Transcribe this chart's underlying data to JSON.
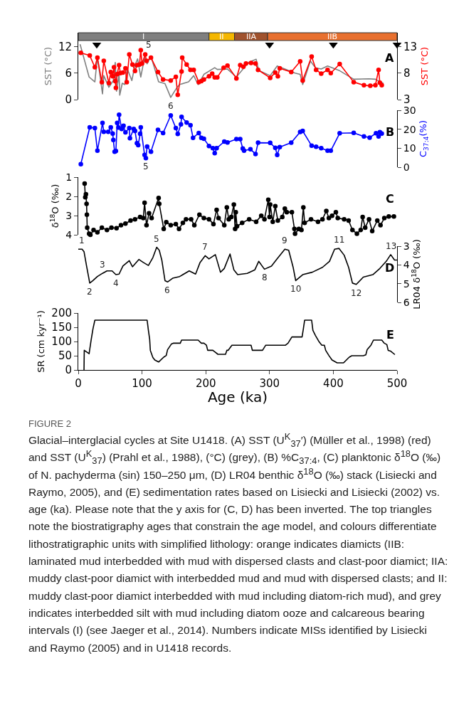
{
  "chart_data": [
    {
      "type": "line",
      "ylabel": "SST (°C)",
      "y2label": "SST (°C)",
      "xlim": [
        0,
        500
      ],
      "xticks": [
        0,
        100,
        200,
        300,
        400,
        500
      ],
      "ylim": [
        0,
        15.1
      ],
      "yticks": [
        0,
        6,
        12
      ],
      "y2lim": [
        3,
        15.6
      ],
      "y2ticks": [
        3,
        8,
        13
      ],
      "tick_labels": "y",
      "marker": "circle",
      "bands": [
        {
          "axis": "x",
          "from": 0,
          "to": 205,
          "label": "I",
          "color": "#7f7f7f"
        },
        {
          "axis": "x",
          "from": 205,
          "to": 245,
          "label": "II",
          "color": "#f5b700"
        },
        {
          "axis": "x",
          "from": 245,
          "to": 297,
          "label": "IIA",
          "color": "#a0522d"
        },
        {
          "axis": "x",
          "from": 297,
          "to": 500,
          "label": "IIB",
          "color": "#e8702f"
        }
      ],
      "series": [
        {
          "color": "#808080",
          "marker": "none",
          "x": [
            3,
            17,
            26,
            30,
            38,
            40,
            48,
            55,
            58,
            60,
            64,
            65,
            69,
            73,
            77,
            84,
            89,
            93,
            98,
            104,
            108,
            114,
            126,
            136,
            145,
            155,
            159,
            173,
            181,
            188,
            197,
            214,
            218,
            234,
            248,
            267,
            279,
            283,
            301,
            312,
            324,
            340,
            348,
            352,
            364,
            372,
            381,
            391,
            409,
            432,
            456,
            466,
            474,
            478
          ],
          "values": [
            12.4,
            5.1,
            4.0,
            9.6,
            1.3,
            5.4,
            2.8,
            4.3,
            8.4,
            1.9,
            5.7,
            1.0,
            3.7,
            3.4,
            6.9,
            4.3,
            7.8,
            9.2,
            5.1,
            9.5,
            8.1,
            9.8,
            4.0,
            3.6,
            0.5,
            2.8,
            3.4,
            4.0,
            5.4,
            3.4,
            5.7,
            7.2,
            6.8,
            6.9,
            5.1,
            8.4,
            9.1,
            6.6,
            5.4,
            7.6,
            6.9,
            6.0,
            5.7,
            3.4,
            8.7,
            7.2,
            6.9,
            7.6,
            6.6,
            4.6,
            4.7,
            4.6,
            4.0,
            3.7
          ]
        },
        {
          "color": "#ff0000",
          "axis": "y2",
          "x": [
            4,
            18,
            26,
            30,
            37,
            40,
            48,
            51,
            54,
            56,
            58,
            59,
            61,
            64,
            66,
            70,
            74,
            76,
            80,
            85,
            89,
            92,
            96,
            98,
            100,
            105,
            107,
            114,
            125,
            133,
            145,
            153,
            156,
            162,
            163,
            170,
            176,
            181,
            189,
            193,
            197,
            205,
            210,
            214,
            218,
            228,
            234,
            248,
            254,
            259,
            263,
            271,
            278,
            282,
            301,
            309,
            313,
            316,
            334,
            348,
            352,
            366,
            373,
            381,
            391,
            396,
            410,
            432,
            448,
            458,
            466,
            471,
            473,
            476
          ],
          "values": [
            11.8,
            11.3,
            9.1,
            10.9,
            6.3,
            10.3,
            6.1,
            8.2,
            7.4,
            9.1,
            6.5,
            5.2,
            7.8,
            9.5,
            8.0,
            8.1,
            8.9,
            6.3,
            11.5,
            9.6,
            8.4,
            9.5,
            9.6,
            12.3,
            9.8,
            11.5,
            10.3,
            10.9,
            8.2,
            6.8,
            6.6,
            7.3,
            3.9,
            8.3,
            10.9,
            9.6,
            8.6,
            8.6,
            6.3,
            6.5,
            6.8,
            7.4,
            7.9,
            7.2,
            7.2,
            9.0,
            9.4,
            7.0,
            9.5,
            9.2,
            9.8,
            9.9,
            9.8,
            8.6,
            7.1,
            8.1,
            7.4,
            8.9,
            8.2,
            10.2,
            6.6,
            11.1,
            8.6,
            7.9,
            8.6,
            8.0,
            9.7,
            6.3,
            5.7,
            5.6,
            5.7,
            8.6,
            6.2,
            5.7
          ]
        },
        {
          "type": "scatter",
          "color": "#000000",
          "marker": "triangle",
          "x": [
            29,
            300,
            400,
            500
          ],
          "values": [
            12.4,
            12.4,
            12.4,
            12.4
          ]
        }
      ],
      "annotations": [
        "A",
        {
          "text": "5",
          "x": 110,
          "y": 10.5
        },
        {
          "text": "6",
          "x": 145,
          "y": 0.5
        }
      ]
    },
    {
      "type": "line",
      "ylabel": "C$_{37:4}$(%)",
      "xlim": [
        0,
        500
      ],
      "xticks": [
        0,
        100,
        200,
        300,
        400,
        500
      ],
      "ylim": [
        0,
        30
      ],
      "yticks": [
        0,
        10,
        20,
        30
      ],
      "tick_labels": "y",
      "marker": "circle",
      "series": [
        {
          "color": "#0000ff",
          "x": [
            4,
            18,
            26,
            30,
            38,
            40,
            47,
            51,
            54,
            55,
            57,
            59,
            61,
            63,
            64,
            68,
            71,
            74,
            80,
            81,
            87,
            89,
            92,
            94,
            97,
            98,
            104,
            106,
            108,
            114,
            125,
            133,
            145,
            153,
            156,
            161,
            162,
            170,
            176,
            180,
            189,
            193,
            197,
            205,
            211,
            214,
            217,
            229,
            234,
            248,
            254,
            258,
            260,
            270,
            278,
            282,
            301,
            309,
            312,
            316,
            334,
            348,
            352,
            366,
            373,
            381,
            391,
            396,
            410,
            432,
            448,
            457,
            467,
            471,
            473,
            476
          ],
          "values": [
            1.6,
            21.0,
            20.6,
            8.7,
            23.3,
            18.7,
            18.7,
            21.0,
            17.7,
            14.3,
            8.2,
            8.5,
            23.3,
            20.9,
            27.7,
            20.2,
            21.8,
            18.4,
            20.6,
            15.3,
            20.2,
            19.1,
            12.7,
            11.6,
            17.6,
            21.0,
            6.5,
            4.8,
            10.9,
            8.2,
            19.7,
            18.0,
            27.3,
            20.6,
            17.5,
            22.6,
            26.5,
            23.5,
            22.1,
            15.5,
            18.0,
            15.5,
            15.0,
            11.2,
            10.0,
            7.4,
            10.0,
            13.5,
            13.0,
            14.8,
            14.8,
            9.8,
            8.7,
            9.5,
            6.9,
            12.9,
            12.8,
            10.2,
            6.5,
            10.6,
            12.9,
            18.6,
            19.1,
            11.3,
            10.8,
            10.0,
            8.7,
            8.7,
            17.9,
            18.1,
            16.2,
            15.6,
            17.9,
            16.2,
            18.5,
            17.7
          ]
        }
      ],
      "annotations": [
        "B",
        {
          "text": "5",
          "x": 106,
          "y": 4.8
        }
      ]
    },
    {
      "type": "line",
      "ylabel": "δ$^{18}$O (‰)",
      "xlim": [
        0,
        500
      ],
      "xticks": [
        0,
        100,
        200,
        300,
        400,
        500
      ],
      "ylim": [
        4,
        1
      ],
      "yticks": [
        1,
        2,
        3,
        4
      ],
      "tick_labels": "y",
      "marker": "circle",
      "series": [
        {
          "color": "#000000",
          "x": [
            10,
            11,
            12,
            13,
            13.5,
            14,
            17,
            19,
            24,
            30,
            37,
            45,
            52,
            60,
            67,
            74,
            82,
            89,
            97,
            102,
            104,
            107,
            111,
            115,
            126,
            127,
            134,
            138,
            145,
            153,
            158,
            164,
            169,
            177,
            182,
            190,
            197,
            205,
            212,
            217,
            220,
            229,
            233,
            236,
            240,
            244,
            246,
            247,
            249,
            257,
            268,
            279,
            287,
            292,
            298,
            300,
            301,
            305,
            309,
            313,
            320,
            324,
            327,
            335,
            339,
            340,
            346,
            350,
            353,
            355,
            365,
            376,
            383,
            389,
            393,
            398,
            404,
            407,
            417,
            424,
            430,
            437,
            443,
            446,
            450,
            456,
            461,
            469,
            474,
            480,
            487,
            495
          ],
          "values": [
            1.33,
            2.05,
            1.89,
            2.39,
            2.95,
            3.63,
            3.94,
            4.0,
            3.75,
            3.87,
            3.63,
            3.75,
            3.63,
            3.66,
            3.5,
            3.42,
            3.26,
            3.19,
            3.07,
            3.13,
            2.33,
            3.5,
            2.88,
            3.13,
            2.08,
            2.39,
            3.69,
            3.34,
            3.5,
            3.44,
            3.69,
            3.38,
            3.19,
            3.19,
            3.5,
            2.95,
            3.13,
            3.19,
            3.44,
            2.7,
            3.13,
            3.5,
            2.57,
            3.19,
            3.07,
            2.43,
            3.69,
            2.82,
            3.56,
            3.38,
            3.19,
            3.32,
            3.01,
            3.19,
            2.18,
            3.07,
            2.43,
            3.32,
            2.51,
            3.26,
            3.07,
            2.64,
            2.82,
            2.82,
            3.69,
            3.94,
            3.69,
            3.75,
            2.57,
            3.38,
            3.19,
            3.32,
            3.19,
            2.76,
            3.13,
            3.01,
            2.82,
            3.13,
            3.19,
            3.26,
            3.75,
            3.94,
            3.75,
            3.07,
            3.63,
            3.19,
            3.81,
            3.26,
            3.5,
            3.13,
            3.05,
            3.05
          ]
        }
      ],
      "annotations": [
        "C"
      ]
    },
    {
      "type": "line",
      "ylabel": "LR04 δ$^{18}$O (‰)",
      "xlim": [
        0,
        500
      ],
      "xticks": [
        0,
        100,
        200,
        300,
        400,
        500
      ],
      "ylim": [
        6,
        3
      ],
      "yticks": [
        3,
        4,
        5,
        6
      ],
      "tick_labels": "y",
      "series": [
        {
          "color": "#000000",
          "x": [
            0,
            6,
            9,
            13,
            18,
            23,
            30,
            38,
            45,
            53,
            59,
            64,
            70,
            80,
            85,
            95,
            102,
            110,
            117,
            123,
            127,
            131,
            136,
            140,
            148,
            159,
            174,
            184,
            191,
            199,
            205,
            215,
            223,
            229,
            238,
            244,
            250,
            265,
            277,
            283,
            292,
            303,
            311,
            324,
            330,
            337,
            341,
            352,
            367,
            383,
            394,
            402,
            409,
            417,
            424,
            430,
            436,
            447,
            462,
            473,
            483,
            490,
            496,
            500
          ],
          "values": [
            3.16,
            3.16,
            3.29,
            4.06,
            4.97,
            4.84,
            4.62,
            4.45,
            4.32,
            4.32,
            4.52,
            4.49,
            4.06,
            3.77,
            4.1,
            3.71,
            3.87,
            4.03,
            3.61,
            3.06,
            3.22,
            3.74,
            4.84,
            4.91,
            4.71,
            4.62,
            4.32,
            4.49,
            3.87,
            3.51,
            3.68,
            3.45,
            4.39,
            4.19,
            3.42,
            4.26,
            4.52,
            4.45,
            4.26,
            3.81,
            4.23,
            4.06,
            3.71,
            3.16,
            3.22,
            4.13,
            4.84,
            4.52,
            4.39,
            4.13,
            3.81,
            3.16,
            3.12,
            3.48,
            4.13,
            4.97,
            5.04,
            4.65,
            4.52,
            4.19,
            3.81,
            3.45,
            3.74,
            3.74
          ]
        }
      ],
      "annotations": [
        "D",
        {
          "text": "1",
          "x": 6,
          "y": 3.16
        },
        {
          "text": "2",
          "x": 18,
          "y": 4.97
        },
        {
          "text": "3",
          "x": 38,
          "y": 4.45
        },
        {
          "text": "4",
          "x": 59,
          "y": 4.52
        },
        {
          "text": "5",
          "x": 123,
          "y": 3.06
        },
        {
          "text": "6",
          "x": 140,
          "y": 4.91
        },
        {
          "text": "7",
          "x": 199,
          "y": 3.51
        },
        {
          "text": "8",
          "x": 292,
          "y": 4.23
        },
        {
          "text": "9",
          "x": 324,
          "y": 3.16
        },
        {
          "text": "10",
          "x": 341,
          "y": 4.84
        },
        {
          "text": "11",
          "x": 409,
          "y": 3.12
        },
        {
          "text": "12",
          "x": 436,
          "y": 5.04
        },
        {
          "text": "13",
          "x": 490,
          "y": 3.45
        }
      ]
    },
    {
      "type": "line",
      "xlabel": "Age (ka)",
      "ylabel": "SR (cm kyr⁻¹)",
      "xlim": [
        0,
        500
      ],
      "xticks": [
        0,
        100,
        200,
        300,
        400,
        500
      ],
      "ylim": [
        0,
        200
      ],
      "yticks": [
        0,
        50,
        100,
        150,
        200
      ],
      "series": [
        {
          "color": "#000000",
          "x": [
            9,
            9.4,
            17,
            20,
            23,
            26,
            108,
            110,
            112,
            113,
            117,
            120,
            126,
            134,
            138,
            140,
            146,
            149,
            160,
            162,
            188,
            193,
            197,
            201,
            203,
            211,
            215,
            219,
            231,
            233,
            235,
            241,
            271,
            273,
            289,
            294,
            325,
            329,
            335,
            351,
            353,
            355,
            366,
            368,
            372,
            378,
            382,
            386,
            388,
            393,
            398,
            406,
            416,
            425,
            429,
            447,
            451,
            453,
            459,
            463,
            476,
            480,
            484,
            486,
            490,
            496
          ],
          "values": [
            0,
            69,
            57,
            103,
            144,
            175,
            175,
            139,
            107,
            69,
            44,
            35,
            28,
            45,
            51,
            71,
            91,
            94,
            94,
            105,
            105,
            94,
            94,
            87,
            69,
            69,
            62,
            55,
            55,
            69,
            69,
            87,
            87,
            69,
            69,
            87,
            87,
            94,
            116,
            116,
            144,
            175,
            175,
            139,
            121,
            98,
            87,
            87,
            69,
            51,
            35,
            25,
            25,
            45,
            50,
            50,
            53,
            71,
            87,
            105,
            105,
            94,
            89,
            69,
            66,
            55
          ]
        }
      ],
      "annotations": [
        "E"
      ]
    },
    {
      "type": "other",
      "annotations": [
        "FIGURE 2",
        "Glacial–interglacial cycles at Site U1418. (A) SST (U$^{K}$$_{37}$′) (Müller et al., 1998) (red) and SST (U$^{K}$$_{37}$) (Prahl et al., 1988), (°C) (grey), (B) %C$_{37:4}$, (C) planktonic δ$^{18}$O (‰) of N. pachyderma (sin) 150–250 μm, (D) LR04 benthic δ$^{18}$O (‰) stack (Lisiecki and Raymo, 2005), and (E) sedimentation rates based on Lisiecki and Lisiecki (2002) vs. age (ka). Please note that the y axis for (C, D) has been inverted. The top triangles note the biostratigraphy ages that constrain the age model, and colours differentiate lithostratigraphic units with simplified lithology: orange indicates diamicts (IIB: laminated mud interbedded with mud with dispersed clasts and clast-poor diamict; IIA: muddy clast-poor diamict with interbedded mud and mud with dispersed clasts; and II: muddy clast-poor diamict interbedded with mud including diatom-rich mud), and grey indicates interbedded silt with mud including diatom ooze and calcareous bearing intervals (I) (see Jaeger et al., 2014). Numbers indicate MISs identified by Lisiecki and Raymo (2005) and in U1418 records."
      ]
    }
  ]
}
